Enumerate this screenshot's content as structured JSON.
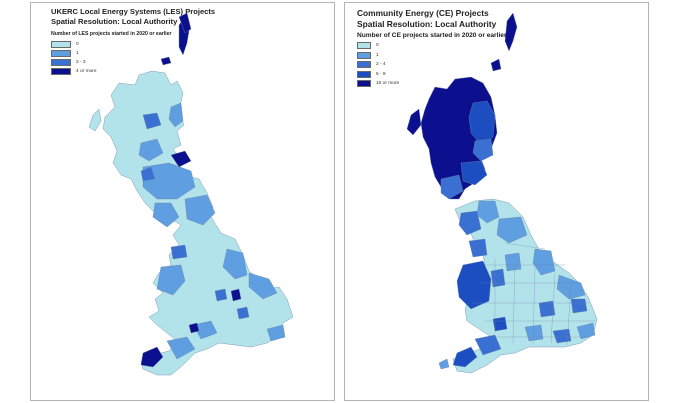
{
  "colors": {
    "c0": "#b3e3ea",
    "c1": "#5e9ee1",
    "c2": "#3a70d2",
    "c3": "#1c4ec1",
    "c4": "#0d108e",
    "border": "#6a86a8"
  },
  "left_map": {
    "title_line1": "UKERC Local Energy Systems (LES) Projects",
    "title_line2": "Spatial Resolution: Local Authority",
    "legend_title": "Number of LES projects started in 2020 or earlier",
    "legend": [
      {
        "label": "0",
        "color_key": "c0"
      },
      {
        "label": "1",
        "color_key": "c1"
      },
      {
        "label": "2 - 3",
        "color_key": "c2"
      },
      {
        "label": "4 or more",
        "color_key": "c4"
      }
    ]
  },
  "right_map": {
    "title_line1": "Community Energy (CE) Projects",
    "title_line2": "Spatial Resolution: Local Authority",
    "legend_title": "Number of CE projects started in 2020 or earlier",
    "legend": [
      {
        "label": "0",
        "color_key": "c0"
      },
      {
        "label": "1",
        "color_key": "c1"
      },
      {
        "label": "2 - 4",
        "color_key": "c2"
      },
      {
        "label": "5 - 9",
        "color_key": "c3"
      },
      {
        "label": "10 or more",
        "color_key": "c4"
      }
    ]
  }
}
